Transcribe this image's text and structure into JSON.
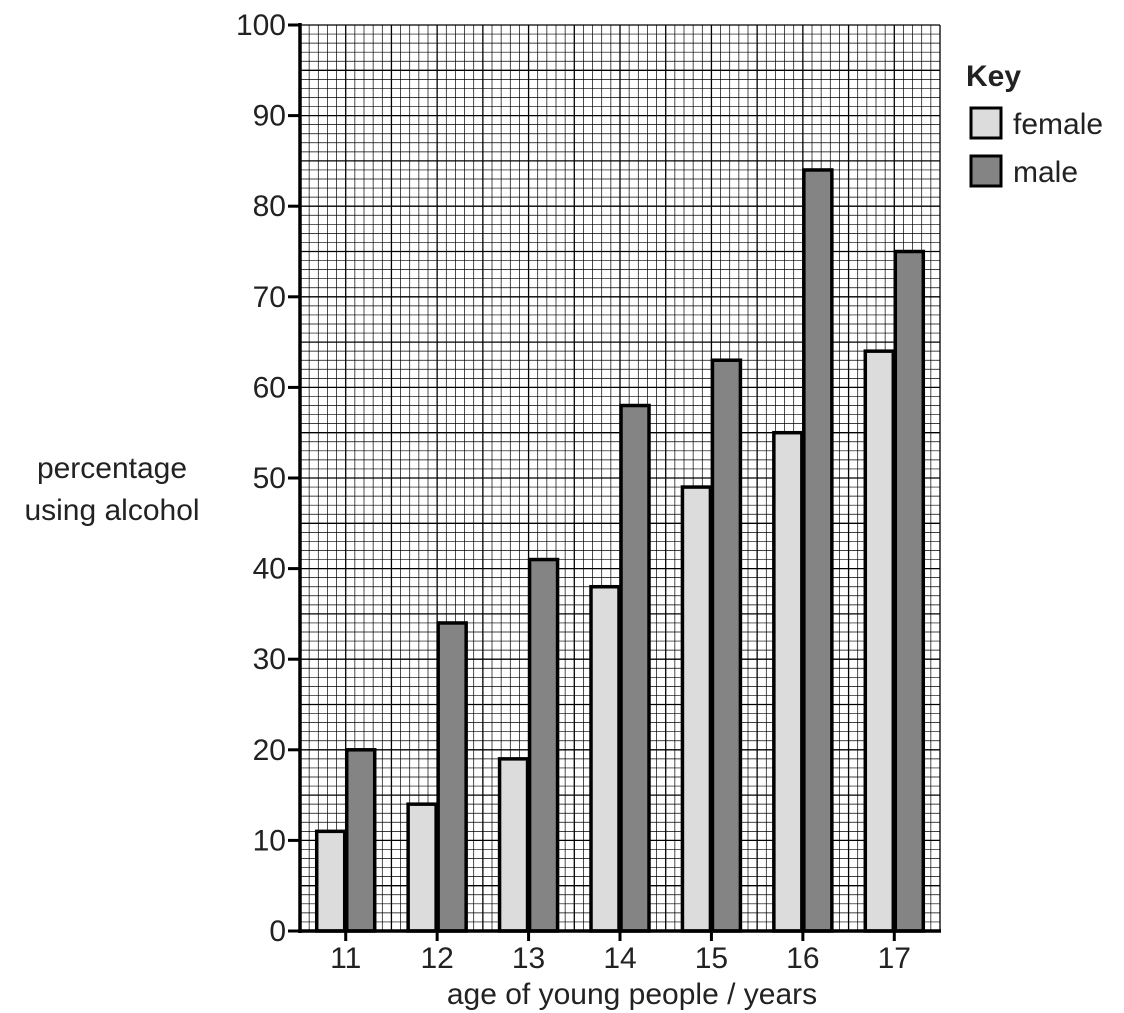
{
  "chart_data": {
    "type": "bar",
    "title": "",
    "ylabel_lines": [
      "percentage",
      "using alcohol"
    ],
    "xlabel": "age of young people / years",
    "categories": [
      "11",
      "12",
      "13",
      "14",
      "15",
      "16",
      "17"
    ],
    "ylim": [
      0,
      100
    ],
    "yticks": [
      0,
      10,
      20,
      30,
      40,
      50,
      60,
      70,
      80,
      90,
      100
    ],
    "grid": true,
    "legend": {
      "title": "Key",
      "placement": "top-right-outside"
    },
    "series": [
      {
        "name": "female",
        "color": "#dcdcdc",
        "values": [
          11,
          14,
          19,
          38,
          49,
          55,
          64
        ]
      },
      {
        "name": "male",
        "color": "#848484",
        "values": [
          20,
          34,
          41,
          58,
          63,
          84,
          75
        ]
      }
    ]
  }
}
